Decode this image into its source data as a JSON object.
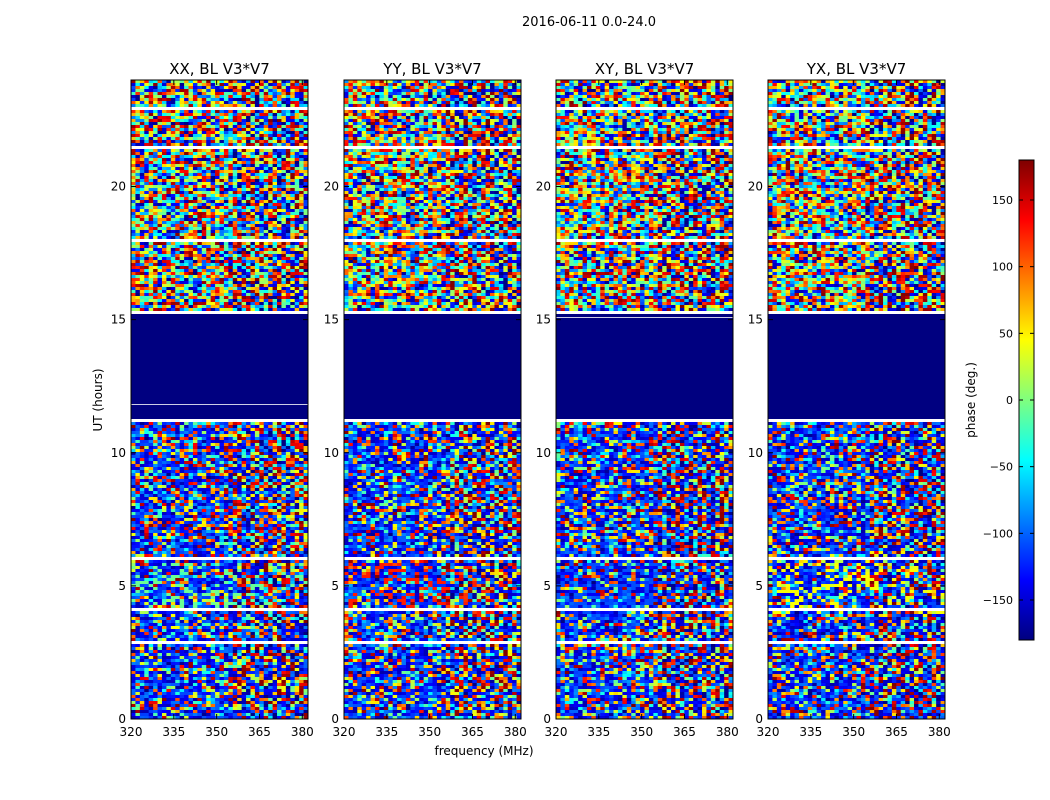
{
  "figure": {
    "suptitle": "2016-06-11 0.0-24.0",
    "xlabel": "frequency (MHz)",
    "ylabel": "UT (hours)"
  },
  "colorbar": {
    "label": "phase (deg.)",
    "colormap": "jet",
    "range": [
      -180,
      180
    ],
    "ticks": [
      150,
      100,
      50,
      0,
      -50,
      -100,
      -150
    ],
    "tick_labels": [
      "150",
      "100",
      "50",
      "0",
      "−50",
      "−100",
      "−150"
    ],
    "colors": [
      "#00007f",
      "#0000ff",
      "#007fff",
      "#00ffff",
      "#7fff7f",
      "#ffff00",
      "#ff7f00",
      "#ff0000",
      "#7f0000"
    ]
  },
  "chart_data": {
    "type": "heatmap",
    "description_value": "baseline phase vs frequency and UT, four polarization panels",
    "x_range": [
      320,
      382
    ],
    "y_range": [
      0,
      24
    ],
    "x_ticks": [
      320,
      335,
      350,
      365,
      380
    ],
    "y_ticks": [
      0,
      5,
      10,
      15,
      20
    ],
    "panels": [
      {
        "title": "XX, BL V3*V7",
        "low_band_tint": 0.48
      },
      {
        "title": "YY, BL V3*V7",
        "low_band_tint": 0.85
      },
      {
        "title": "XY, BL V3*V7",
        "low_band_tint": 0.2
      },
      {
        "title": "YX, BL V3*V7",
        "low_band_tint": 0.62
      }
    ],
    "uniform_phase_band_hours": [
      11.3,
      15.3
    ],
    "uniform_phase_value": -180,
    "noisy_bands_hours": [
      [
        0,
        11.3
      ],
      [
        15.3,
        24
      ]
    ],
    "gap_hours": [
      2.9,
      4.2,
      6.1,
      11.3,
      15.3,
      18.0,
      21.5,
      23.0
    ]
  }
}
